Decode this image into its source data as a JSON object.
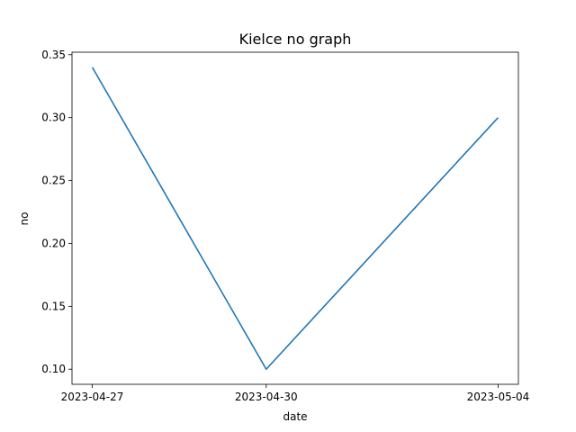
{
  "chart_data": {
    "type": "line",
    "title": "Kielce no graph",
    "xlabel": "date",
    "ylabel": "no",
    "x": [
      "2023-04-27",
      "2023-04-30",
      "2023-05-04"
    ],
    "series": [
      {
        "values": [
          0.34,
          0.1,
          0.3
        ],
        "color": "#1f77b4"
      }
    ],
    "ylim": [
      0.088,
      0.352
    ],
    "yticks": [
      "0.10",
      "0.15",
      "0.20",
      "0.25",
      "0.30",
      "0.35"
    ],
    "grid": false,
    "legend": "none"
  }
}
